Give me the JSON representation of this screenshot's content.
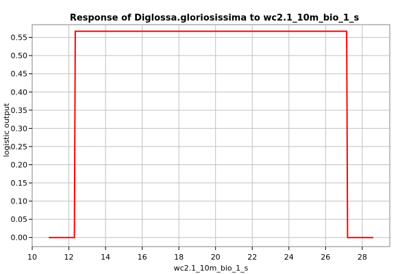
{
  "chart_data": {
    "type": "line",
    "title": "Response of Diglossa.gloriosissima to wc2.1_10m_bio_1_s",
    "xlabel": "wc2.1_10m_bio_1_s",
    "ylabel": "logistic output",
    "xlim": [
      10,
      29.5
    ],
    "ylim": [
      -0.025,
      0.585
    ],
    "xticks": [
      10,
      12,
      14,
      16,
      18,
      20,
      22,
      24,
      26,
      28
    ],
    "yticks": [
      0.0,
      0.05,
      0.1,
      0.15,
      0.2,
      0.25,
      0.3,
      0.35,
      0.4,
      0.45,
      0.5,
      0.55
    ],
    "ytick_labels": [
      "0.00",
      "0.05",
      "0.10",
      "0.15",
      "0.20",
      "0.25",
      "0.30",
      "0.35",
      "0.40",
      "0.45",
      "0.50",
      "0.55"
    ],
    "grid": true,
    "legend": "none",
    "series": [
      {
        "color": "#ff0000",
        "x": [
          10.9,
          12.3,
          12.35,
          27.15,
          27.2,
          28.6
        ],
        "y": [
          0.0,
          0.0,
          0.567,
          0.567,
          0.0,
          0.0
        ]
      }
    ]
  }
}
